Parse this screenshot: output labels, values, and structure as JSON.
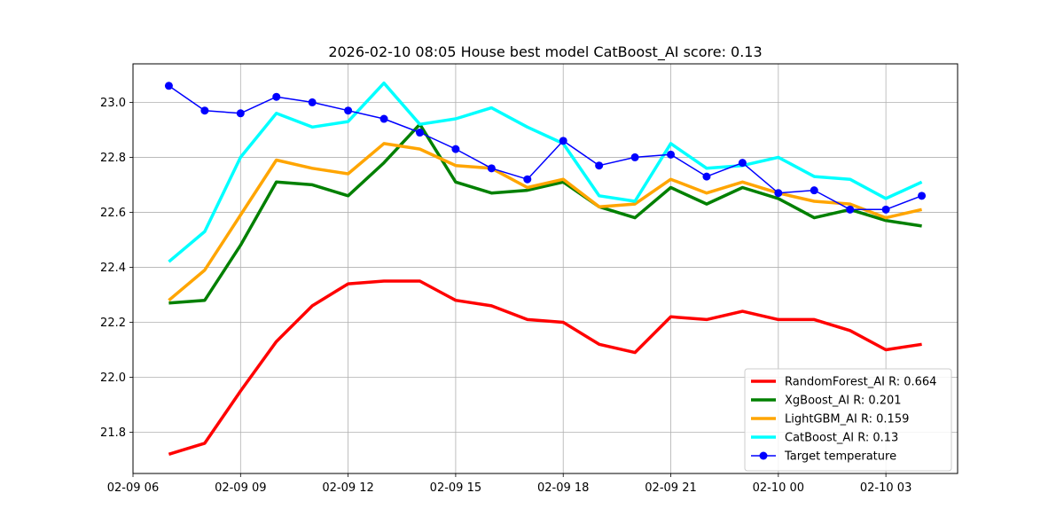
{
  "chart_data": {
    "type": "line",
    "title": "2026-02-10 08:05 House best model CatBoost_AI score: 0.13",
    "xlabel": "",
    "ylabel": "",
    "x_unit": "datetime",
    "x": [
      "2026-02-09 07:00",
      "2026-02-09 08:00",
      "2026-02-09 09:00",
      "2026-02-09 10:00",
      "2026-02-09 11:00",
      "2026-02-09 12:00",
      "2026-02-09 13:00",
      "2026-02-09 14:00",
      "2026-02-09 15:00",
      "2026-02-09 16:00",
      "2026-02-09 17:00",
      "2026-02-09 18:00",
      "2026-02-09 19:00",
      "2026-02-09 20:00",
      "2026-02-09 21:00",
      "2026-02-09 22:00",
      "2026-02-09 23:00",
      "2026-02-10 00:00",
      "2026-02-10 01:00",
      "2026-02-10 02:00",
      "2026-02-10 03:00",
      "2026-02-10 04:00"
    ],
    "xlim": [
      "2026-02-09 06:00",
      "2026-02-10 05:00"
    ],
    "ylim": [
      21.65,
      23.14
    ],
    "x_ticks": [
      {
        "value": "2026-02-09 06:00",
        "label": "02-09 06"
      },
      {
        "value": "2026-02-09 09:00",
        "label": "02-09 09"
      },
      {
        "value": "2026-02-09 12:00",
        "label": "02-09 12"
      },
      {
        "value": "2026-02-09 15:00",
        "label": "02-09 15"
      },
      {
        "value": "2026-02-09 18:00",
        "label": "02-09 18"
      },
      {
        "value": "2026-02-09 21:00",
        "label": "02-09 21"
      },
      {
        "value": "2026-02-10 00:00",
        "label": "02-10 00"
      },
      {
        "value": "2026-02-10 03:00",
        "label": "02-10 03"
      }
    ],
    "y_ticks": [
      {
        "value": 21.8,
        "label": "21.8"
      },
      {
        "value": 22.0,
        "label": "22.0"
      },
      {
        "value": 22.2,
        "label": "22.2"
      },
      {
        "value": 22.4,
        "label": "22.4"
      },
      {
        "value": 22.6,
        "label": "22.6"
      },
      {
        "value": 22.8,
        "label": "22.8"
      },
      {
        "value": 23.0,
        "label": "23.0"
      }
    ],
    "grid": true,
    "legend_position": "lower-right",
    "series": [
      {
        "name": "RandomForest_AI R: 0.664",
        "color": "#ff0000",
        "marker": false,
        "values": [
          21.72,
          21.76,
          21.95,
          22.13,
          22.26,
          22.34,
          22.35,
          22.35,
          22.28,
          22.26,
          22.21,
          22.2,
          22.12,
          22.09,
          22.22,
          22.21,
          22.24,
          22.21,
          22.21,
          22.17,
          22.1,
          22.12
        ]
      },
      {
        "name": "XgBoost_AI R: 0.201",
        "color": "#008000",
        "marker": false,
        "values": [
          22.27,
          22.28,
          22.48,
          22.71,
          22.7,
          22.66,
          22.78,
          22.92,
          22.71,
          22.67,
          22.68,
          22.71,
          22.62,
          22.58,
          22.69,
          22.63,
          22.69,
          22.65,
          22.58,
          22.61,
          22.57,
          22.55
        ]
      },
      {
        "name": "LightGBM_AI R: 0.159",
        "color": "#ffa500",
        "marker": false,
        "values": [
          22.28,
          22.39,
          22.59,
          22.79,
          22.76,
          22.74,
          22.85,
          22.83,
          22.77,
          22.76,
          22.69,
          22.72,
          22.62,
          22.63,
          22.72,
          22.67,
          22.71,
          22.67,
          22.64,
          22.63,
          22.58,
          22.61
        ]
      },
      {
        "name": "CatBoost_AI R: 0.13",
        "color": "#00ffff",
        "marker": false,
        "values": [
          22.42,
          22.53,
          22.8,
          22.96,
          22.91,
          22.93,
          23.07,
          22.92,
          22.94,
          22.98,
          22.91,
          22.85,
          22.66,
          22.64,
          22.85,
          22.76,
          22.77,
          22.8,
          22.73,
          22.72,
          22.65,
          22.71
        ]
      },
      {
        "name": "Target temperature",
        "color": "#0000ff",
        "marker": true,
        "values": [
          23.06,
          22.97,
          22.96,
          23.02,
          23.0,
          22.97,
          22.94,
          22.89,
          22.83,
          22.76,
          22.72,
          22.86,
          22.77,
          22.8,
          22.81,
          22.73,
          22.78,
          22.67,
          22.68,
          22.61,
          22.61,
          22.66
        ]
      }
    ]
  }
}
